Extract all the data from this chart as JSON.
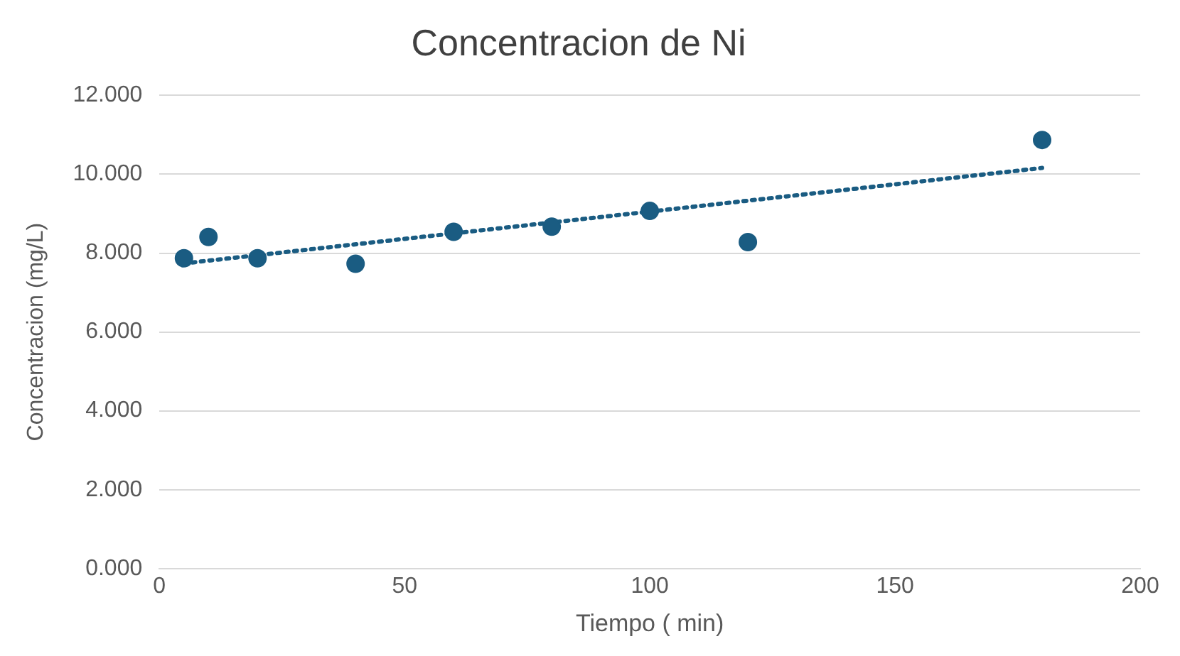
{
  "chart_data": {
    "type": "scatter",
    "title": "Concentracion de Ni",
    "xlabel": "Tiempo ( min)",
    "ylabel": "Concentracion (mg/L)",
    "xlim": [
      0,
      200
    ],
    "xticks": [
      0,
      50,
      100,
      150,
      200
    ],
    "ylim": [
      0,
      12
    ],
    "yticks": [
      {
        "value": 0,
        "label": "0.000"
      },
      {
        "value": 2,
        "label": "2.000"
      },
      {
        "value": 4,
        "label": "4.000"
      },
      {
        "value": 6,
        "label": "6.000"
      },
      {
        "value": 8,
        "label": "8.000"
      },
      {
        "value": 10,
        "label": "10.000"
      },
      {
        "value": 12,
        "label": "12.000"
      }
    ],
    "grid": "y",
    "legend": false,
    "marker": "circle",
    "series": [
      {
        "color": "#1a5c82",
        "x": [
          5,
          10,
          20,
          40,
          60,
          80,
          100,
          120,
          180
        ],
        "values": [
          7.87,
          8.41,
          7.87,
          7.73,
          8.54,
          8.67,
          9.07,
          8.28,
          10.87
        ]
      },
      {
        "type": "line",
        "color": "#1a5c82",
        "line_style": "dotted",
        "marker": "none",
        "x": [
          5,
          180
        ],
        "values": [
          7.74,
          10.16
        ]
      }
    ]
  }
}
